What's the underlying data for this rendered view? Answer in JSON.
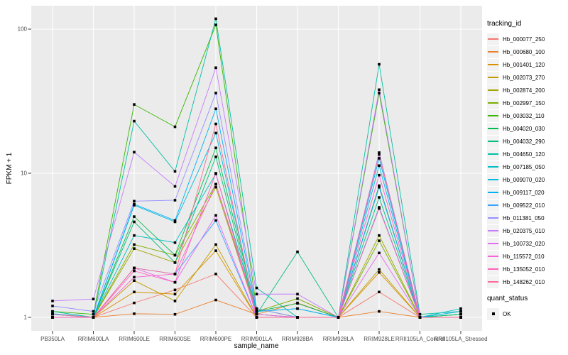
{
  "chart_data": {
    "type": "line",
    "title": "",
    "xlabel": "sample_name",
    "ylabel": "FPKM + 1",
    "y_scale": "log10",
    "y_ticks": [
      "1",
      "10",
      "100"
    ],
    "y_tick_values": [
      1,
      10,
      100
    ],
    "ylim": [
      1,
      145
    ],
    "grid": "major-white-on-gray",
    "panel_background": "#ebebeb",
    "gridline_color": "#ffffff",
    "legend_position": "right",
    "legend_title": "tracking_id",
    "point_marker": "black-square",
    "quant_legend": {
      "title": "quant_status",
      "entries": [
        "OK"
      ]
    },
    "categories": [
      "PB350LA",
      "RRIM600LA",
      "RRIM600LE",
      "RRIM600SE",
      "RRIM600PE",
      "RRIM901LA",
      "RRIM928BA",
      "RRIM928LA",
      "RRIM928LE",
      "RRII105LA_Control",
      "RRII105LA_Stressed"
    ],
    "series": [
      {
        "name": "Hb_000077_250",
        "color": "#F8766D",
        "values": [
          1.0,
          1.0,
          1.26,
          1.55,
          2.0,
          1.0,
          1.0,
          1.0,
          1.5,
          1.0,
          1.0
        ]
      },
      {
        "name": "Hb_000680_100",
        "color": "#EA8331",
        "values": [
          1.0,
          1.0,
          1.06,
          1.05,
          1.32,
          1.05,
          1.26,
          1.0,
          1.1,
          1.0,
          1.0
        ]
      },
      {
        "name": "Hb_001401_120",
        "color": "#D89000",
        "values": [
          1.0,
          1.0,
          1.5,
          1.45,
          2.9,
          1.0,
          1.0,
          1.0,
          2.05,
          1.0,
          1.0
        ]
      },
      {
        "name": "Hb_002073_270",
        "color": "#C09B00",
        "values": [
          1.0,
          1.0,
          1.8,
          1.3,
          3.2,
          1.0,
          1.0,
          1.0,
          2.15,
          1.0,
          1.0
        ]
      },
      {
        "name": "Hb_002874_200",
        "color": "#A3A500",
        "values": [
          1.0,
          1.0,
          3.0,
          2.4,
          8.0,
          1.05,
          1.0,
          1.0,
          3.7,
          1.0,
          1.0
        ]
      },
      {
        "name": "Hb_002997_150",
        "color": "#7CAE00",
        "values": [
          1.05,
          1.0,
          3.2,
          2.7,
          8.4,
          1.1,
          1.35,
          1.0,
          3.4,
          1.0,
          1.05
        ]
      },
      {
        "name": "Hb_003032_110",
        "color": "#39B600",
        "values": [
          1.1,
          1.05,
          30,
          21,
          107,
          1.15,
          1.0,
          1.0,
          36,
          1.0,
          1.0
        ]
      },
      {
        "name": "Hb_004020_030",
        "color": "#00BB4E",
        "values": [
          1.05,
          1.0,
          5.0,
          2.7,
          15,
          1.1,
          1.25,
          1.0,
          8.2,
          1.0,
          1.05
        ]
      },
      {
        "name": "Hb_004032_290",
        "color": "#00BF7D",
        "values": [
          1.0,
          1.0,
          4.6,
          2.4,
          13,
          1.05,
          2.85,
          1.0,
          6.8,
          1.0,
          1.05
        ]
      },
      {
        "name": "Hb_004650_120",
        "color": "#00C1A3",
        "values": [
          1.1,
          1.0,
          23,
          10.3,
          118,
          1.6,
          1.0,
          1.0,
          57,
          1.05,
          1.1
        ]
      },
      {
        "name": "Hb_007185_050",
        "color": "#00BFC4",
        "values": [
          1.05,
          1.0,
          3.7,
          3.3,
          9.9,
          1.1,
          1.15,
          1.0,
          5.8,
          1.0,
          1.15
        ]
      },
      {
        "name": "Hb_009070_020",
        "color": "#00BAE0",
        "values": [
          1.0,
          1.0,
          6.0,
          4.6,
          19,
          1.05,
          1.0,
          1.0,
          11.3,
          1.0,
          1.1
        ]
      },
      {
        "name": "Hb_009117_020",
        "color": "#00B0F6",
        "values": [
          1.06,
          1.0,
          6.1,
          4.7,
          28,
          1.1,
          1.15,
          1.0,
          12.7,
          1.0,
          1.0
        ]
      },
      {
        "name": "Hb_009522_010",
        "color": "#35A2FF",
        "values": [
          1.0,
          1.0,
          2.2,
          2.0,
          4.7,
          1.0,
          1.0,
          1.0,
          8.0,
          1.0,
          1.0
        ]
      },
      {
        "name": "Hb_011381_050",
        "color": "#9590FF",
        "values": [
          1.2,
          1.1,
          6.4,
          6.5,
          36,
          1.15,
          1.0,
          1.0,
          13.9,
          1.0,
          1.0
        ]
      },
      {
        "name": "Hb_020375_010",
        "color": "#C77CFF",
        "values": [
          1.3,
          1.34,
          14,
          8.1,
          54,
          1.45,
          1.45,
          1.0,
          38,
          1.0,
          1.0
        ]
      },
      {
        "name": "Hb_100732_020",
        "color": "#E76BF3",
        "values": [
          1.0,
          1.0,
          2.2,
          1.75,
          5.1,
          1.0,
          1.0,
          1.0,
          2.8,
          1.0,
          1.0
        ]
      },
      {
        "name": "Hb_115572_010",
        "color": "#FA62DB",
        "values": [
          1.0,
          1.0,
          1.9,
          2.0,
          8.4,
          1.05,
          1.0,
          1.0,
          9.7,
          1.0,
          1.0
        ]
      },
      {
        "name": "Hb_135052_010",
        "color": "#FF62BC",
        "values": [
          1.0,
          1.0,
          2.1,
          1.75,
          10,
          1.0,
          1.0,
          1.0,
          5.7,
          1.0,
          1.0
        ]
      },
      {
        "name": "Hb_148262_010",
        "color": "#FF6A98",
        "values": [
          1.05,
          1.0,
          2.2,
          2.0,
          22,
          1.0,
          1.0,
          1.0,
          13.5,
          1.0,
          1.0
        ]
      }
    ]
  }
}
